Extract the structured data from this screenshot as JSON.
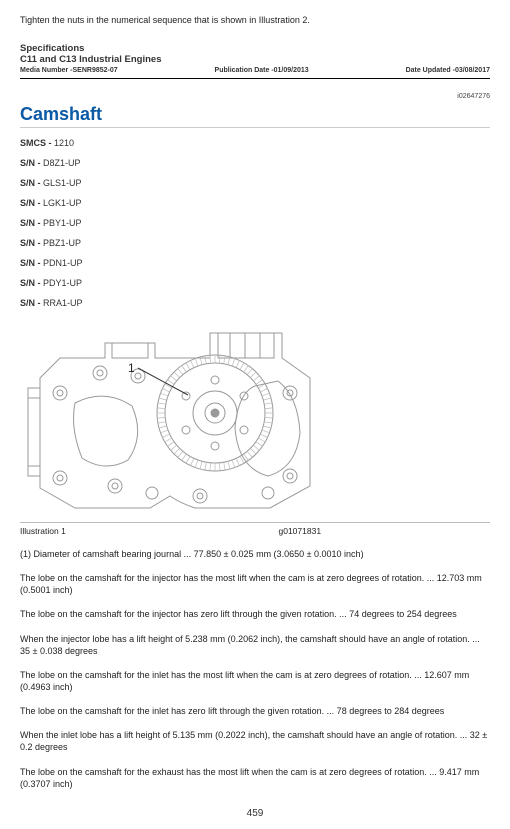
{
  "top_note": "Tighten the nuts in the numerical sequence that is shown in Illustration 2.",
  "spec": {
    "title": "Specifications",
    "subtitle": "C11 and C13 Industrial Engines",
    "media": "Media Number -SENR9852-07",
    "pub": "Publication Date -01/09/2013",
    "upd": "Date Updated -03/08/2017"
  },
  "doc_id": "i02647276",
  "section_title": "Camshaft",
  "smcs": {
    "label": "SMCS - ",
    "value": "1210"
  },
  "sn_label": "S/N - ",
  "sn": [
    "D8Z1-UP",
    "GLS1-UP",
    "LGK1-UP",
    "PBY1-UP",
    "PBZ1-UP",
    "PDN1-UP",
    "PDY1-UP",
    "RRA1-UP"
  ],
  "fig": {
    "label": "Illustration 1",
    "id": "g01071831",
    "callout": "1"
  },
  "paras": [
    "(1) Diameter of camshaft bearing journal ... 77.850 ± 0.025 mm (3.0650 ± 0.0010 inch)",
    "The lobe on the camshaft for the injector has the most lift when the cam is at zero degrees of rotation. ... 12.703 mm (0.5001 inch)",
    "The lobe on the camshaft for the injector has zero lift through the given rotation. ... 74 degrees to 254 degrees",
    "When the injector lobe has a lift height of 5.238 mm (0.2062 inch), the camshaft should have an angle of rotation. ... 35 ± 0.038 degrees",
    "The lobe on the camshaft for the inlet has the most lift when the cam is at zero degrees of rotation. ... 12.607 mm (0.4963 inch)",
    "The lobe on the camshaft for the inlet has zero lift through the given rotation. ... 78 degrees to 284 degrees",
    "When the inlet lobe has a lift height of 5.135 mm (0.2022 inch), the camshaft should have an angle of rotation. ... 32 ± 0.2 degrees",
    "The lobe on the camshaft for the exhaust has the most lift when the cam is at zero degrees of rotation. ... 9.417 mm (0.3707 inch)"
  ],
  "page": "459"
}
